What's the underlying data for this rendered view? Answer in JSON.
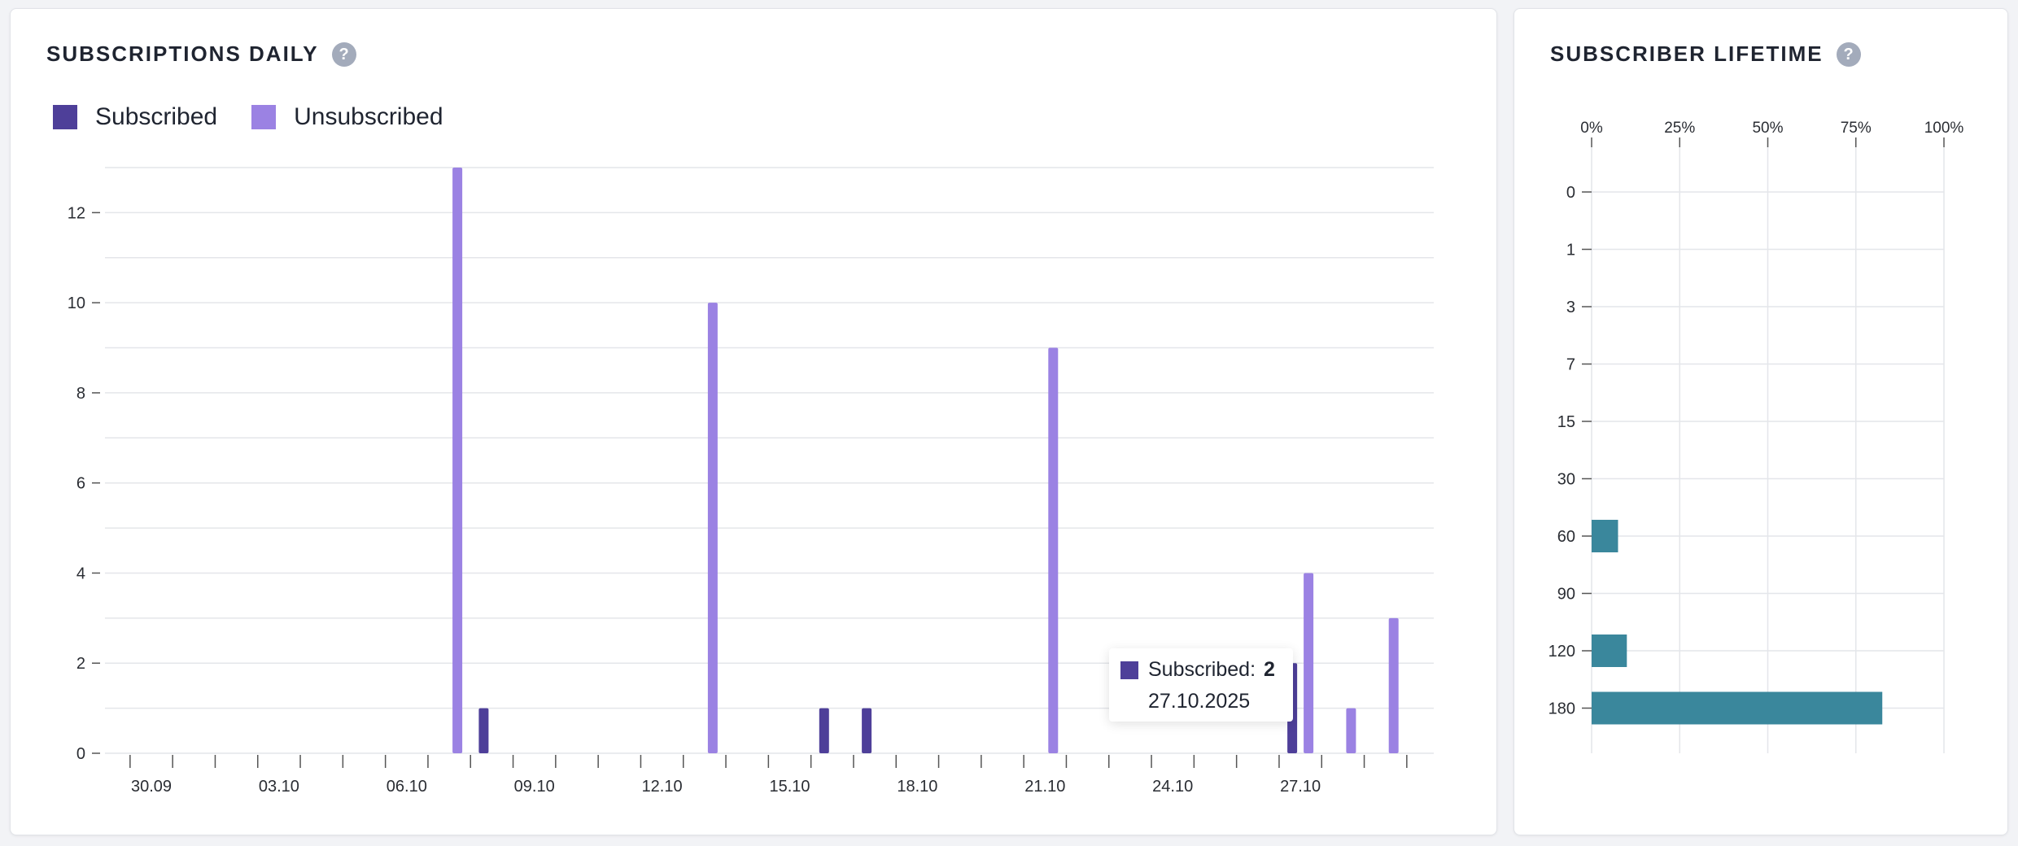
{
  "colors": {
    "subscribed": "#4e3f99",
    "unsubscribed": "#9b82e3",
    "lifetime_bar": "#3a879c",
    "grid": "#e4e6ea",
    "axis_text": "#2a2d33"
  },
  "daily": {
    "title": "SUBSCRIPTIONS DAILY",
    "help_icon": "?",
    "legend": [
      {
        "label": "Subscribed",
        "color": "#4e3f99"
      },
      {
        "label": "Unsubscribed",
        "color": "#9b82e3"
      }
    ],
    "tooltip": {
      "series": "Subscribed:",
      "value": "2",
      "date": "27.10.2025"
    }
  },
  "lifetime": {
    "title": "SUBSCRIBER LIFETIME",
    "help_icon": "?"
  },
  "chart_data": [
    {
      "type": "bar",
      "title": "SUBSCRIPTIONS DAILY",
      "x_tick_labels": [
        "30.09",
        "03.10",
        "06.10",
        "09.10",
        "12.10",
        "15.10",
        "18.10",
        "21.10",
        "24.10",
        "27.10"
      ],
      "dates": [
        "30.09",
        "01.10",
        "02.10",
        "03.10",
        "04.10",
        "05.10",
        "06.10",
        "07.10",
        "08.10",
        "09.10",
        "10.10",
        "11.10",
        "12.10",
        "13.10",
        "14.10",
        "15.10",
        "16.10",
        "17.10",
        "18.10",
        "19.10",
        "20.10",
        "21.10",
        "22.10",
        "23.10",
        "24.10",
        "25.10",
        "26.10",
        "27.10",
        "28.10",
        "29.10"
      ],
      "series": [
        {
          "name": "Subscribed",
          "values": [
            0,
            0,
            0,
            0,
            0,
            0,
            0,
            0,
            1,
            0,
            0,
            0,
            0,
            0,
            0,
            0,
            1,
            1,
            0,
            0,
            0,
            0,
            0,
            0,
            0,
            0,
            0,
            2,
            0,
            0
          ]
        },
        {
          "name": "Unsubscribed",
          "values": [
            0,
            0,
            0,
            0,
            0,
            0,
            0,
            13,
            0,
            0,
            0,
            0,
            0,
            10,
            0,
            0,
            0,
            0,
            0,
            0,
            0,
            9,
            0,
            0,
            0,
            0,
            0,
            4,
            1,
            3
          ]
        }
      ],
      "y_ticks": [
        0,
        2,
        4,
        6,
        8,
        10,
        12
      ],
      "ylim": [
        0,
        13
      ],
      "grid": true,
      "legend_position": "top-left"
    },
    {
      "type": "bar",
      "orientation": "horizontal",
      "title": "SUBSCRIBER LIFETIME",
      "categories": [
        "0",
        "1",
        "3",
        "7",
        "15",
        "30",
        "60",
        "90",
        "120",
        "180"
      ],
      "values": [
        0,
        0,
        0,
        0,
        0,
        0,
        7.5,
        0,
        10,
        82.5
      ],
      "x_ticks": [
        "0%",
        "25%",
        "50%",
        "75%",
        "100%"
      ],
      "xlim": [
        0,
        100
      ],
      "grid": true
    }
  ]
}
